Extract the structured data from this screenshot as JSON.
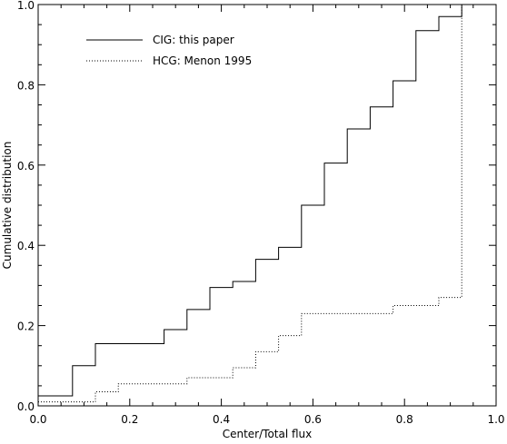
{
  "chart_data": {
    "type": "line",
    "subtype": "step",
    "title": "",
    "xlabel": "Center/Total flux",
    "ylabel": "Cumulative distribution",
    "xlim": [
      0.0,
      1.0
    ],
    "ylim": [
      0.0,
      1.0
    ],
    "x_ticks": [
      0.0,
      0.2,
      0.4,
      0.6,
      0.8,
      1.0
    ],
    "x_tick_labels": [
      "0.0",
      "0.2",
      "0.4",
      "0.6",
      "0.8",
      "1.0"
    ],
    "y_ticks": [
      0.0,
      0.2,
      0.4,
      0.6,
      0.8,
      1.0
    ],
    "y_tick_labels": [
      "0.0",
      "0.2",
      "0.4",
      "0.6",
      "0.8",
      "1.0"
    ],
    "grid": false,
    "legend_position": "top-left",
    "series": [
      {
        "name": "CIG: this paper",
        "style": "solid",
        "color": "#000000",
        "x": [
          0.0,
          0.075,
          0.125,
          0.275,
          0.325,
          0.375,
          0.425,
          0.475,
          0.525,
          0.575,
          0.625,
          0.675,
          0.725,
          0.775,
          0.825,
          0.875,
          0.925
        ],
        "y": [
          0.025,
          0.1,
          0.155,
          0.19,
          0.24,
          0.295,
          0.31,
          0.365,
          0.395,
          0.5,
          0.605,
          0.69,
          0.745,
          0.81,
          0.935,
          0.97,
          1.0
        ]
      },
      {
        "name": "HCG: Menon 1995",
        "style": "dotted",
        "color": "#000000",
        "x": [
          0.0,
          0.075,
          0.125,
          0.175,
          0.325,
          0.425,
          0.475,
          0.525,
          0.575,
          0.775,
          0.875,
          0.925
        ],
        "y": [
          0.01,
          0.01,
          0.035,
          0.055,
          0.07,
          0.095,
          0.135,
          0.175,
          0.23,
          0.25,
          0.27,
          1.0
        ]
      }
    ]
  }
}
